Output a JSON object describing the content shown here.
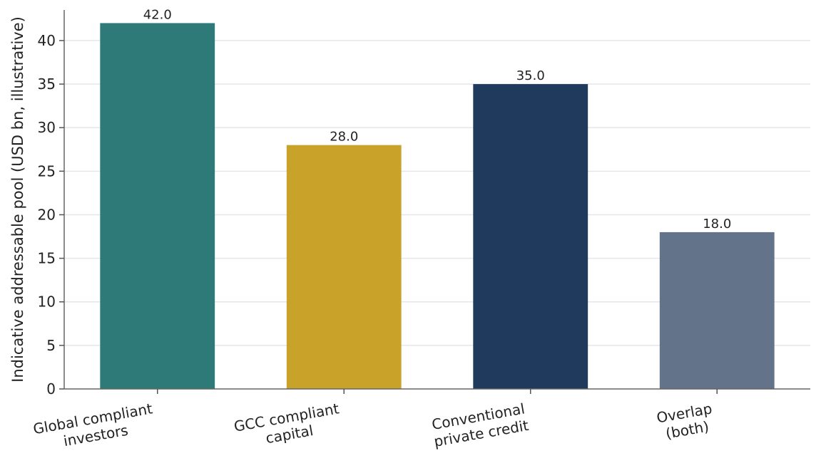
{
  "chart_data": {
    "type": "bar",
    "categories": [
      [
        "Global compliant",
        "investors"
      ],
      [
        "GCC compliant",
        "capital"
      ],
      [
        "Conventional",
        "private credit"
      ],
      [
        "Overlap",
        "(both)"
      ]
    ],
    "values": [
      42.0,
      28.0,
      35.0,
      18.0
    ],
    "value_labels": [
      "42.0",
      "28.0",
      "35.0",
      "18.0"
    ],
    "bar_colors": [
      "#2d7a78",
      "#c9a22a",
      "#1f3a5c",
      "#63738a"
    ],
    "ylabel": "Indicative addressable pool (USD bn, illustrative)",
    "xlabel": "",
    "ylim": [
      0,
      44
    ],
    "yticks": [
      0,
      5,
      10,
      15,
      20,
      25,
      30,
      35,
      40
    ],
    "grid": "horizontal",
    "legend": "none"
  }
}
